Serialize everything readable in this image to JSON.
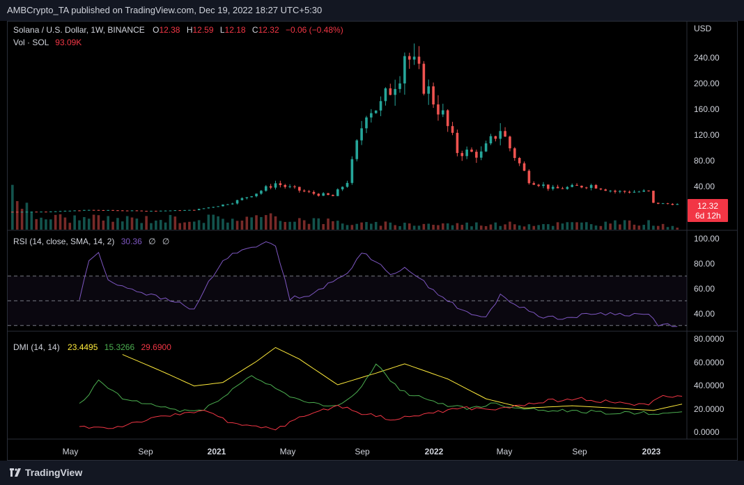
{
  "publisher": "AMBCrypto_TA published on TradingView.com, Dec 19, 2022 18:27 UTC+5:30",
  "brand": "TradingView",
  "colors": {
    "up": "#26a69a",
    "down": "#ef5350",
    "rsi": "#7e57c2",
    "adx": "#ffeb3b",
    "plus_di": "#4caf50",
    "minus_di": "#f23645",
    "price_tag": "#f23645"
  },
  "legend": {
    "symbol": "Solana / U.S. Dollar, 1W, BINANCE",
    "o_label": "O",
    "o": "12.38",
    "h_label": "H",
    "h": "12.59",
    "l_label": "L",
    "l": "12.18",
    "c_label": "C",
    "c": "12.32",
    "change": "−0.06 (−0.48%)",
    "vol_label": "Vol · SOL",
    "vol": "93.09K",
    "rsi_label": "RSI (14, close, SMA, 14, 2)",
    "rsi_val": "30.36",
    "rsi_na1": "∅",
    "rsi_na2": "∅",
    "dmi_label": "DMI (14, 14)",
    "adx_val": "23.4495",
    "plus_val": "15.3266",
    "minus_val": "29.6900"
  },
  "price_axis": {
    "currency": "USD",
    "ticks": [
      "240.00",
      "200.00",
      "160.00",
      "120.00",
      "80.00",
      "40.00"
    ],
    "last_price": "12.32",
    "countdown": "6d 12h"
  },
  "rsi_axis": {
    "ticks": [
      "100.00",
      "80.00",
      "60.00",
      "40.00"
    ]
  },
  "dmi_axis": {
    "ticks": [
      "80.0000",
      "60.0000",
      "40.0000",
      "20.0000",
      "0.0000"
    ]
  },
  "time_axis": {
    "labels": [
      "May",
      "Sep",
      "2021",
      "May",
      "Sep",
      "2022",
      "May",
      "Sep",
      "2023"
    ]
  },
  "chart_data": [
    {
      "type": "candlestick",
      "title": "Solana / U.S. Dollar, 1W, BINANCE",
      "ylabel": "USD",
      "ylim": [
        0,
        270
      ],
      "x_range": [
        "2020-04-06",
        "2022-12-26"
      ],
      "series": [
        {
          "name": "price_close_approx",
          "dates": [
            "2020-04-13",
            "2020-06-01",
            "2020-08-03",
            "2020-09-07",
            "2020-11-02",
            "2021-01-04",
            "2021-02-08",
            "2021-03-01",
            "2021-04-05",
            "2021-05-03",
            "2021-05-17",
            "2021-06-21",
            "2021-07-26",
            "2021-08-16",
            "2021-08-30",
            "2021-09-13",
            "2021-10-04",
            "2021-11-01",
            "2021-11-08",
            "2021-12-06",
            "2022-01-03",
            "2022-01-24",
            "2022-02-28",
            "2022-03-28",
            "2022-04-11",
            "2022-05-09",
            "2022-06-13",
            "2022-08-08",
            "2022-09-12",
            "2022-10-31",
            "2022-11-07",
            "2022-12-12"
          ],
          "values": [
            0.7,
            0.9,
            3.5,
            3.0,
            2.1,
            3.5,
            10,
            15,
            30,
            45,
            40,
            30,
            25,
            48,
            105,
            160,
            165,
            220,
            250,
            200,
            150,
            95,
            90,
            130,
            100,
            50,
            36,
            42,
            32,
            32,
            14,
            12.32
          ]
        }
      ]
    },
    {
      "type": "bar",
      "title": "Vol · SOL",
      "note": "weekly volume bars, relative heights (max = 1)",
      "series": [
        {
          "name": "Vol · SOL",
          "dates": [
            "2020-04-13",
            "2020-05-11",
            "2020-08-17",
            "2021-05-17",
            "2021-09-06",
            "2022-05-09",
            "2022-11-07",
            "2022-12-12"
          ],
          "values": [
            1.0,
            0.28,
            0.22,
            0.25,
            0.12,
            0.12,
            0.15,
            0.03
          ]
        }
      ]
    },
    {
      "type": "line",
      "title": "RSI (14, close, SMA, 14, 2)",
      "ylim": [
        25,
        100
      ],
      "bands": [
        30,
        50,
        70
      ],
      "series": [
        {
          "name": "RSI",
          "dates": [
            "2020-07-20",
            "2020-08-03",
            "2020-08-17",
            "2020-08-31",
            "2020-09-21",
            "2020-10-19",
            "2020-11-16",
            "2020-12-21",
            "2021-01-04",
            "2021-01-25",
            "2021-02-15",
            "2021-03-08",
            "2021-04-05",
            "2021-04-26",
            "2021-05-03",
            "2021-05-24",
            "2021-06-21",
            "2021-07-19",
            "2021-08-16",
            "2021-09-06",
            "2021-09-27",
            "2021-10-18",
            "2021-11-08",
            "2021-12-06",
            "2022-01-10",
            "2022-02-07",
            "2022-03-07",
            "2022-03-28",
            "2022-04-25",
            "2022-05-30",
            "2022-07-04",
            "2022-08-15",
            "2022-09-26",
            "2022-10-31",
            "2022-11-14",
            "2022-12-12"
          ],
          "values": [
            51,
            83,
            88,
            67,
            62,
            57,
            52,
            47,
            42,
            65,
            82,
            90,
            95,
            97,
            94,
            52,
            55,
            63,
            72,
            90,
            82,
            70,
            78,
            65,
            50,
            40,
            36,
            55,
            45,
            37,
            36,
            40,
            39,
            39,
            31,
            30.36
          ]
        }
      ]
    },
    {
      "type": "line",
      "title": "DMI (14, 14)",
      "ylim": [
        -5,
        82
      ],
      "series": [
        {
          "name": "ADX",
          "dates": [
            "2020-09-21",
            "2020-11-16",
            "2021-01-04",
            "2021-02-15",
            "2021-04-05",
            "2021-05-03",
            "2021-06-07",
            "2021-08-02",
            "2021-09-27",
            "2021-11-08",
            "2022-01-10",
            "2022-03-07",
            "2022-05-02",
            "2022-07-11",
            "2022-09-12",
            "2022-11-07",
            "2022-12-19"
          ],
          "values": [
            66,
            52,
            39,
            42,
            60,
            72,
            62,
            40,
            50,
            58,
            45,
            28,
            20,
            22,
            20,
            18,
            23.4495
          ]
        },
        {
          "name": "+DI",
          "dates": [
            "2020-07-20",
            "2020-08-03",
            "2020-08-17",
            "2020-09-21",
            "2020-12-14",
            "2021-01-18",
            "2021-02-15",
            "2021-03-29",
            "2021-05-10",
            "2021-06-14",
            "2021-07-26",
            "2021-08-30",
            "2021-09-27",
            "2021-11-01",
            "2021-12-20",
            "2022-02-07",
            "2022-03-21",
            "2022-04-25",
            "2022-06-20",
            "2022-09-12",
            "2022-12-19"
          ],
          "values": [
            23,
            31,
            44,
            28,
            18,
            18,
            30,
            48,
            35,
            25,
            21,
            33,
            58,
            35,
            25,
            20,
            24,
            20,
            18,
            16,
            15.3266
          ]
        },
        {
          "name": "−DI",
          "dates": [
            "2020-07-20",
            "2020-09-07",
            "2020-10-19",
            "2020-12-14",
            "2021-01-18",
            "2021-03-01",
            "2021-05-03",
            "2021-06-21",
            "2021-08-02",
            "2021-09-06",
            "2021-10-25",
            "2021-12-06",
            "2022-01-31",
            "2022-03-28",
            "2022-05-30",
            "2022-07-25",
            "2022-09-12",
            "2022-10-31",
            "2022-11-14",
            "2022-12-19"
          ],
          "values": [
            4,
            3,
            9,
            15,
            19,
            6,
            2,
            15,
            22,
            16,
            10,
            15,
            20,
            19,
            26,
            28,
            25,
            22,
            30,
            29.69
          ]
        }
      ]
    }
  ]
}
